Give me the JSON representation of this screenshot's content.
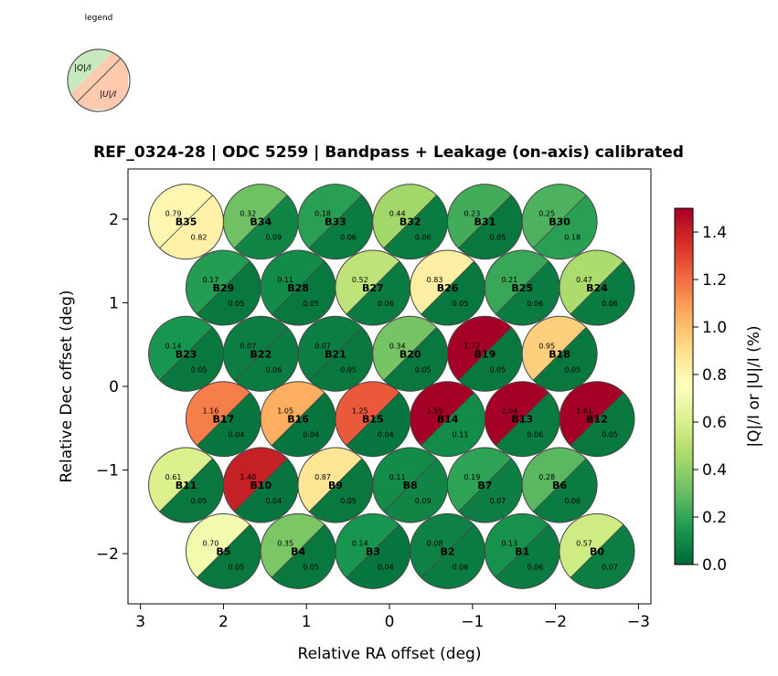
{
  "legend": {
    "caption": "legend",
    "q_label": "|Q|/I",
    "u_label": "|U|/I"
  },
  "chart_data": {
    "type": "scatter",
    "title": "REF_0324-28  |  ODC 5259  |  Bandpass + Leakage (on-axis) calibrated",
    "xlabel": "Relative RA offset (deg)",
    "ylabel": "Relative Dec offset (deg)",
    "xlim": [
      3.15,
      -3.15
    ],
    "ylim": [
      -2.6,
      2.6
    ],
    "xticks": [
      3,
      2,
      1,
      0,
      -1,
      -2,
      -3
    ],
    "xtick_labels": [
      "3",
      "2",
      "1",
      "0",
      "−1",
      "−2",
      "−3"
    ],
    "yticks": [
      2,
      1,
      0,
      -1,
      -2
    ],
    "ytick_labels": [
      "2",
      "1",
      "0",
      "−1",
      "−2"
    ],
    "colorbar": {
      "label": "|Q|/I  or  |U|/I  (%)",
      "range": [
        0.0,
        1.5
      ],
      "ticks": [
        0.0,
        0.2,
        0.4,
        0.6,
        0.8,
        1.0,
        1.2,
        1.4
      ],
      "tick_labels": [
        "0.0",
        "0.2",
        "0.4",
        "0.6",
        "0.8",
        "1.0",
        "1.2",
        "1.4"
      ],
      "colormap": "RdYlGn_r"
    },
    "beams": [
      {
        "name": "B35",
        "ra": 2.45,
        "dec": 1.97,
        "q": "0.79",
        "u": "0.82"
      },
      {
        "name": "B34",
        "ra": 1.55,
        "dec": 1.97,
        "q": "0.32",
        "u": "0.09"
      },
      {
        "name": "B33",
        "ra": 0.65,
        "dec": 1.97,
        "q": "0.18",
        "u": "0.06"
      },
      {
        "name": "B32",
        "ra": -0.25,
        "dec": 1.97,
        "q": "0.44",
        "u": "0.06"
      },
      {
        "name": "B31",
        "ra": -1.15,
        "dec": 1.97,
        "q": "0.23",
        "u": "0.05"
      },
      {
        "name": "B30",
        "ra": -2.05,
        "dec": 1.97,
        "q": "0.25",
        "u": "0.18"
      },
      {
        "name": "B29",
        "ra": 2.0,
        "dec": 1.18,
        "q": "0.17",
        "u": "0.05"
      },
      {
        "name": "B28",
        "ra": 1.1,
        "dec": 1.18,
        "q": "0.11",
        "u": "0.05"
      },
      {
        "name": "B27",
        "ra": 0.2,
        "dec": 1.18,
        "q": "0.52",
        "u": "0.06"
      },
      {
        "name": "B26",
        "ra": -0.7,
        "dec": 1.18,
        "q": "0.83",
        "u": "0.05"
      },
      {
        "name": "B25",
        "ra": -1.6,
        "dec": 1.18,
        "q": "0.21",
        "u": "0.06"
      },
      {
        "name": "B24",
        "ra": -2.5,
        "dec": 1.18,
        "q": "0.47",
        "u": "0.06"
      },
      {
        "name": "B23",
        "ra": 2.45,
        "dec": 0.39,
        "q": "0.14",
        "u": "0.05"
      },
      {
        "name": "B22",
        "ra": 1.55,
        "dec": 0.39,
        "q": "0.07",
        "u": "0.06"
      },
      {
        "name": "B21",
        "ra": 0.65,
        "dec": 0.39,
        "q": "0.07",
        "u": "0.05"
      },
      {
        "name": "B20",
        "ra": -0.25,
        "dec": 0.39,
        "q": "0.34",
        "u": "0.05"
      },
      {
        "name": "B19",
        "ra": -1.15,
        "dec": 0.39,
        "q": "1.72",
        "u": "0.05"
      },
      {
        "name": "B18",
        "ra": -2.05,
        "dec": 0.39,
        "q": "0.95",
        "u": "0.05"
      },
      {
        "name": "B17",
        "ra": 2.0,
        "dec": -0.39,
        "q": "1.16",
        "u": "0.04"
      },
      {
        "name": "B16",
        "ra": 1.1,
        "dec": -0.39,
        "q": "1.05",
        "u": "0.04"
      },
      {
        "name": "B15",
        "ra": 0.2,
        "dec": -0.39,
        "q": "1.25",
        "u": "0.04"
      },
      {
        "name": "B14",
        "ra": -0.7,
        "dec": -0.39,
        "q": "1.55",
        "u": "0.11"
      },
      {
        "name": "B13",
        "ra": -1.6,
        "dec": -0.39,
        "q": "2.04",
        "u": "0.06"
      },
      {
        "name": "B12",
        "ra": -2.5,
        "dec": -0.39,
        "q": "1.61",
        "u": "0.05"
      },
      {
        "name": "B11",
        "ra": 2.45,
        "dec": -1.18,
        "q": "0.61",
        "u": "0.05"
      },
      {
        "name": "B10",
        "ra": 1.55,
        "dec": -1.18,
        "q": "1.40",
        "u": "0.04"
      },
      {
        "name": "B9",
        "ra": 0.65,
        "dec": -1.18,
        "q": "0.87",
        "u": "0.05"
      },
      {
        "name": "B8",
        "ra": -0.25,
        "dec": -1.18,
        "q": "0.11",
        "u": "0.09"
      },
      {
        "name": "B7",
        "ra": -1.15,
        "dec": -1.18,
        "q": "0.19",
        "u": "0.07"
      },
      {
        "name": "B6",
        "ra": -2.05,
        "dec": -1.18,
        "q": "0.28",
        "u": "0.06"
      },
      {
        "name": "B5",
        "ra": 2.0,
        "dec": -1.97,
        "q": "0.70",
        "u": "0.05"
      },
      {
        "name": "B4",
        "ra": 1.1,
        "dec": -1.97,
        "q": "0.35",
        "u": "0.05"
      },
      {
        "name": "B3",
        "ra": 0.2,
        "dec": -1.97,
        "q": "0.14",
        "u": "0.04"
      },
      {
        "name": "B2",
        "ra": -0.7,
        "dec": -1.97,
        "q": "0.08",
        "u": "0.06"
      },
      {
        "name": "B1",
        "ra": -1.6,
        "dec": -1.97,
        "q": "0.13",
        "u": "0.06"
      },
      {
        "name": "B0",
        "ra": -2.5,
        "dec": -1.97,
        "q": "0.57",
        "u": "0.07"
      }
    ]
  }
}
